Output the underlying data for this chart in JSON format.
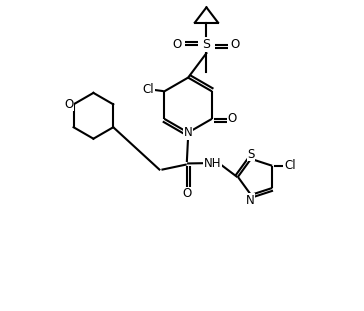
{
  "bg_color": "#ffffff",
  "line_color": "#000000",
  "line_width": 1.5,
  "font_size": 8.5,
  "fig_width": 3.64,
  "fig_height": 3.11,
  "dpi": 100,
  "xlim": [
    0,
    10
  ],
  "ylim": [
    0,
    10
  ]
}
